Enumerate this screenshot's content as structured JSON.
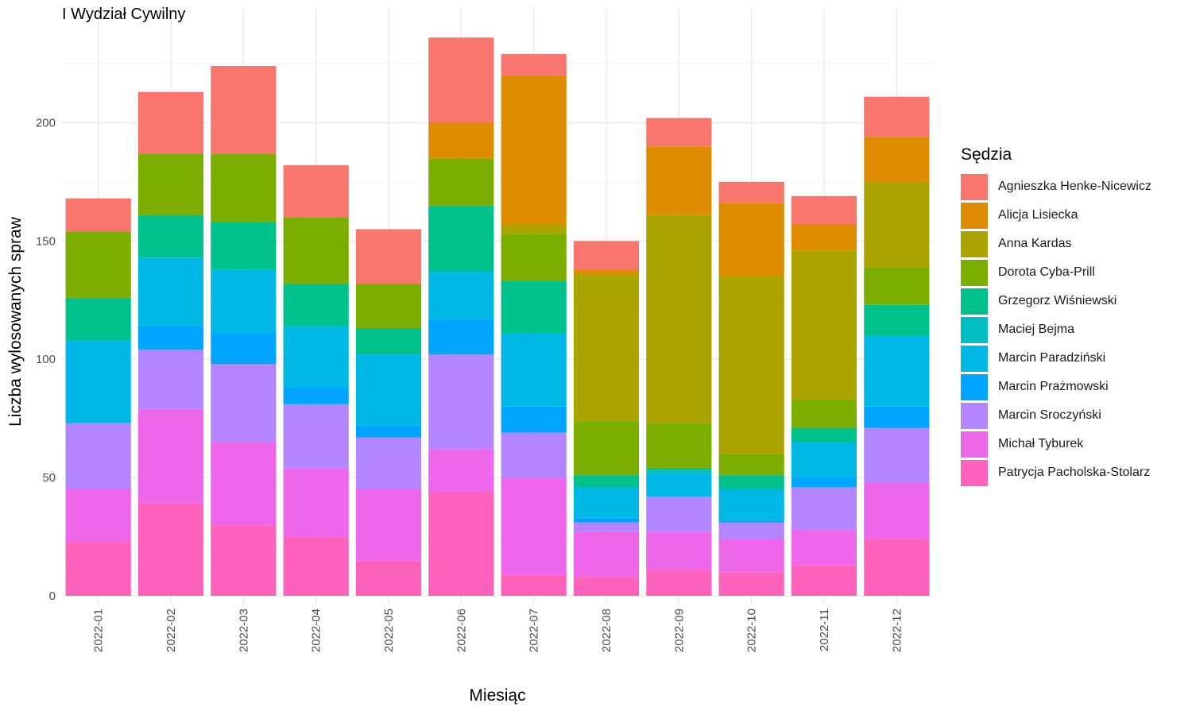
{
  "chart_data": {
    "type": "bar",
    "stacked": true,
    "title": "I Wydział Cywilny",
    "xlabel": "Miesiąc",
    "ylabel": "Liczba wylosowanych spraw",
    "ylim": [
      0,
      240
    ],
    "yticks": [
      0,
      50,
      100,
      150,
      200
    ],
    "grid": true,
    "legend_title": "Sędzia",
    "legend_position": "right",
    "categories": [
      "2022-01",
      "2022-02",
      "2022-03",
      "2022-04",
      "2022-05",
      "2022-06",
      "2022-07",
      "2022-08",
      "2022-09",
      "2022-10",
      "2022-11",
      "2022-12"
    ],
    "series": [
      {
        "name": "Patrycja Pacholska-Stolarz",
        "color": "#FF62BC",
        "values": [
          23,
          39,
          30,
          25,
          15,
          44,
          9,
          8,
          11,
          10,
          13,
          24
        ]
      },
      {
        "name": "Michał Tyburek",
        "color": "#EE67EB",
        "values": [
          22,
          40,
          35,
          29,
          30,
          18,
          41,
          19,
          16,
          14,
          15,
          24
        ]
      },
      {
        "name": "Marcin Sroczyński",
        "color": "#B385FF",
        "values": [
          28,
          25,
          33,
          27,
          22,
          40,
          19,
          4,
          15,
          7,
          18,
          23
        ]
      },
      {
        "name": "Marcin Prażmowski",
        "color": "#00A5FF",
        "values": [
          0,
          10,
          13,
          7,
          5,
          15,
          11,
          2,
          0,
          1,
          4,
          9
        ]
      },
      {
        "name": "Marcin Paradziński",
        "color": "#00B8E5",
        "values": [
          35,
          29,
          27,
          26,
          30,
          20,
          31,
          13,
          10,
          13,
          15,
          30
        ]
      },
      {
        "name": "Maciej Bejma",
        "color": "#00BFC4",
        "values": [
          0,
          0,
          0,
          0,
          0,
          0,
          0,
          0,
          1,
          0,
          0,
          0
        ]
      },
      {
        "name": "Grzegorz Wiśniewski",
        "color": "#00C08B",
        "values": [
          18,
          18,
          20,
          18,
          11,
          28,
          22,
          5,
          1,
          6,
          6,
          13
        ]
      },
      {
        "name": "Dorota Cyba-Prill",
        "color": "#7CAE00",
        "values": [
          28,
          26,
          29,
          28,
          19,
          20,
          20,
          23,
          19,
          9,
          12,
          16
        ]
      },
      {
        "name": "Anna Kardas",
        "color": "#ABA300",
        "values": [
          0,
          0,
          0,
          0,
          0,
          0,
          4,
          62,
          88,
          75,
          63,
          36
        ]
      },
      {
        "name": "Alicja Lisiecka",
        "color": "#DE8C00",
        "values": [
          0,
          0,
          0,
          0,
          0,
          15,
          63,
          2,
          29,
          31,
          11,
          19
        ]
      },
      {
        "name": "Agnieszka Henke-Nicewicz",
        "color": "#F8766D",
        "values": [
          14,
          26,
          37,
          22,
          23,
          36,
          9,
          12,
          12,
          9,
          12,
          17
        ]
      }
    ],
    "legend_order": [
      "Agnieszka Henke-Nicewicz",
      "Alicja Lisiecka",
      "Anna Kardas",
      "Dorota Cyba-Prill",
      "Grzegorz Wiśniewski",
      "Maciej Bejma",
      "Marcin Paradziński",
      "Marcin Prażmowski",
      "Marcin Sroczyński",
      "Michał Tyburek",
      "Patrycja Pacholska-Stolarz"
    ]
  }
}
